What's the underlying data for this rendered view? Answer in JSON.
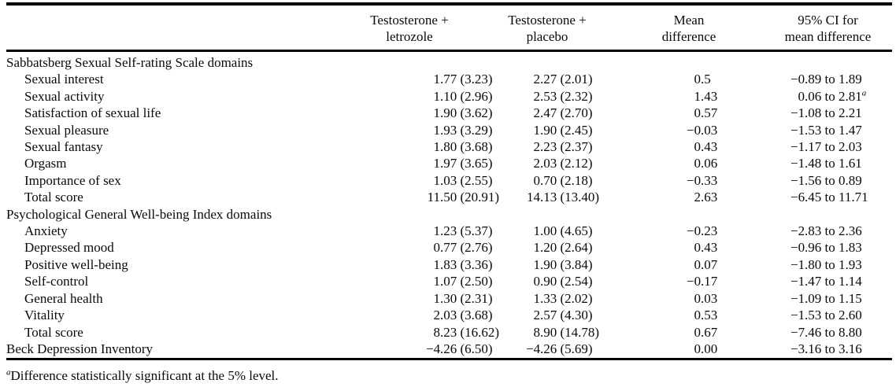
{
  "table": {
    "headers": {
      "row_label": "",
      "letrozole": [
        "Testosterone +",
        "letrozole"
      ],
      "placebo": [
        "Testosterone +",
        "placebo"
      ],
      "mean_diff": [
        "Mean",
        "difference"
      ],
      "ci": [
        "95% CI for",
        "mean difference"
      ]
    },
    "rows": [
      {
        "type": "section",
        "indent": false,
        "label": "Sabbatsberg Sexual Self-rating Scale domains"
      },
      {
        "type": "item",
        "indent": true,
        "label": "Sexual interest",
        "letrozole": "1.77 (3.23)",
        "placebo": "2.27 (2.01)",
        "mean_diff": "0.5",
        "ci": "−0.89 to 1.89"
      },
      {
        "type": "item",
        "indent": true,
        "label": "Sexual activity",
        "letrozole": "1.10 (2.96)",
        "placebo": "2.53 (2.32)",
        "mean_diff": "1.43",
        "ci": "0.06 to 2.81",
        "ci_sup": "a"
      },
      {
        "type": "item",
        "indent": true,
        "label": "Satisfaction of sexual life",
        "letrozole": "1.90 (3.62)",
        "placebo": "2.47 (2.70)",
        "mean_diff": "0.57",
        "ci": "−1.08 to 2.21"
      },
      {
        "type": "item",
        "indent": true,
        "label": "Sexual pleasure",
        "letrozole": "1.93 (3.29)",
        "placebo": "1.90 (2.45)",
        "mean_diff": "−0.03",
        "ci": "−1.53 to 1.47"
      },
      {
        "type": "item",
        "indent": true,
        "label": "Sexual fantasy",
        "letrozole": "1.80 (3.68)",
        "placebo": "2.23 (2.37)",
        "mean_diff": "0.43",
        "ci": "−1.17 to 2.03"
      },
      {
        "type": "item",
        "indent": true,
        "label": "Orgasm",
        "letrozole": "1.97 (3.65)",
        "placebo": "2.03 (2.12)",
        "mean_diff": "0.06",
        "ci": "−1.48 to 1.61"
      },
      {
        "type": "item",
        "indent": true,
        "label": "Importance of sex",
        "letrozole": "1.03 (2.55)",
        "placebo": "0.70 (2.18)",
        "mean_diff": "−0.33",
        "ci": "−1.56 to 0.89"
      },
      {
        "type": "item",
        "indent": true,
        "label": "Total score",
        "letrozole": "11.50 (20.91)",
        "placebo": "14.13 (13.40)",
        "mean_diff": "2.63",
        "ci": "−6.45 to 11.71"
      },
      {
        "type": "section",
        "indent": false,
        "label": "Psychological General Well-being Index domains"
      },
      {
        "type": "item",
        "indent": true,
        "label": "Anxiety",
        "letrozole": "1.23 (5.37)",
        "placebo": "1.00 (4.65)",
        "mean_diff": "−0.23",
        "ci": "−2.83 to 2.36"
      },
      {
        "type": "item",
        "indent": true,
        "label": "Depressed mood",
        "letrozole": "0.77 (2.76)",
        "placebo": "1.20 (2.64)",
        "mean_diff": "0.43",
        "ci": "−0.96 to 1.83"
      },
      {
        "type": "item",
        "indent": true,
        "label": "Positive well-being",
        "letrozole": "1.83 (3.36)",
        "placebo": "1.90 (3.84)",
        "mean_diff": "0.07",
        "ci": "−1.80 to 1.93"
      },
      {
        "type": "item",
        "indent": true,
        "label": "Self-control",
        "letrozole": "1.07 (2.50)",
        "placebo": "0.90 (2.54)",
        "mean_diff": "−0.17",
        "ci": "−1.47 to 1.14"
      },
      {
        "type": "item",
        "indent": true,
        "label": "General health",
        "letrozole": "1.30 (2.31)",
        "placebo": "1.33 (2.02)",
        "mean_diff": "0.03",
        "ci": "−1.09 to 1.15"
      },
      {
        "type": "item",
        "indent": true,
        "label": "Vitality",
        "letrozole": "2.03 (3.68)",
        "placebo": "2.57 (4.30)",
        "mean_diff": "0.53",
        "ci": "−1.53 to 2.60"
      },
      {
        "type": "item",
        "indent": true,
        "label": "Total score",
        "letrozole": "8.23 (16.62)",
        "placebo": "8.90 (14.78)",
        "mean_diff": "0.67",
        "ci": "−7.46 to 8.80"
      },
      {
        "type": "item",
        "indent": false,
        "label": "Beck Depression Inventory",
        "letrozole": "−4.26 (6.50)",
        "placebo": "−4.26 (5.69)",
        "mean_diff": "0.00",
        "ci": "−3.16 to 3.16"
      }
    ]
  },
  "footnote": {
    "marker": "a",
    "text": "Difference statistically significant at the 5% level."
  },
  "colors": {
    "text": "#0a0a0a",
    "rule": "#000000",
    "background": "#ffffff"
  }
}
